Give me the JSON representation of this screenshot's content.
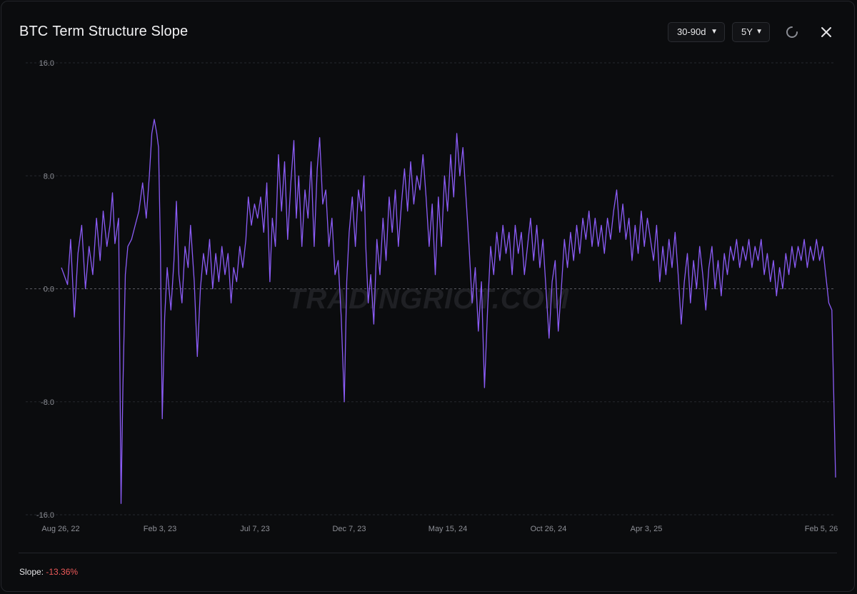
{
  "header": {
    "symbol": "BTC",
    "title": "Term Structure Slope",
    "tenor_select": "30-90d",
    "range_select": "5Y"
  },
  "icons": {
    "refresh": "refresh-icon",
    "close": "close-icon",
    "chevron": "chevron-down-icon"
  },
  "watermark": "TRADINGRIOT.COM",
  "footer": {
    "label": "Slope:",
    "value": "-13.36%"
  },
  "colors": {
    "line": "#8b5cf6",
    "negative": "#ef5a5a",
    "background": "#0b0c0e"
  },
  "chart_data": {
    "type": "line",
    "title": "BTC Term Structure Slope",
    "x_ticks": [
      "Aug 26, 22",
      "Feb 3, 23",
      "Jul 7, 23",
      "Dec 7, 23",
      "May 15, 24",
      "Oct 26, 24",
      "Apr 3, 25",
      "Feb 5, 26"
    ],
    "y_ticks": [
      "16.0",
      "8.0",
      "0.0",
      "-8.0",
      "-16.0"
    ],
    "ylim": [
      -16,
      16
    ],
    "xlim": [
      "2022-08-26",
      "2026-02-05"
    ],
    "grid": "horizontal dashed",
    "zero_line": true,
    "series": [
      {
        "values": [
          [
            "2022-08-26",
            1.5
          ],
          [
            "2022-09-05",
            0.3
          ],
          [
            "2022-09-10",
            3.5
          ],
          [
            "2022-09-16",
            -2.0
          ],
          [
            "2022-09-22",
            2.5
          ],
          [
            "2022-09-28",
            4.5
          ],
          [
            "2022-10-04",
            0.0
          ],
          [
            "2022-10-10",
            3.0
          ],
          [
            "2022-10-16",
            1.0
          ],
          [
            "2022-10-22",
            5.0
          ],
          [
            "2022-10-28",
            2.0
          ],
          [
            "2022-11-02",
            5.5
          ],
          [
            "2022-11-08",
            3.0
          ],
          [
            "2022-11-13",
            4.5
          ],
          [
            "2022-11-17",
            6.8
          ],
          [
            "2022-11-21",
            3.2
          ],
          [
            "2022-11-27",
            5.0
          ],
          [
            "2022-12-01",
            -15.2
          ],
          [
            "2022-12-04",
            -7.0
          ],
          [
            "2022-12-08",
            1.0
          ],
          [
            "2022-12-12",
            3.0
          ],
          [
            "2022-12-18",
            3.5
          ],
          [
            "2022-12-24",
            4.5
          ],
          [
            "2022-12-30",
            5.5
          ],
          [
            "2023-01-05",
            7.5
          ],
          [
            "2023-01-11",
            5.0
          ],
          [
            "2023-01-16",
            8.0
          ],
          [
            "2023-01-20",
            11.0
          ],
          [
            "2023-01-24",
            12.0
          ],
          [
            "2023-01-28",
            11.0
          ],
          [
            "2023-01-31",
            10.0
          ],
          [
            "2023-02-03",
            3.0
          ],
          [
            "2023-02-06",
            -9.2
          ],
          [
            "2023-02-10",
            -2.0
          ],
          [
            "2023-02-14",
            1.5
          ],
          [
            "2023-02-20",
            -1.5
          ],
          [
            "2023-02-25",
            2.0
          ],
          [
            "2023-03-01",
            6.2
          ],
          [
            "2023-03-05",
            1.0
          ],
          [
            "2023-03-10",
            -1.0
          ],
          [
            "2023-03-15",
            3.0
          ],
          [
            "2023-03-20",
            1.5
          ],
          [
            "2023-03-24",
            4.5
          ],
          [
            "2023-03-30",
            0.5
          ],
          [
            "2023-04-04",
            -4.8
          ],
          [
            "2023-04-09",
            0.0
          ],
          [
            "2023-04-14",
            2.5
          ],
          [
            "2023-04-19",
            1.0
          ],
          [
            "2023-04-24",
            3.5
          ],
          [
            "2023-04-29",
            0.0
          ],
          [
            "2023-05-04",
            2.5
          ],
          [
            "2023-05-09",
            0.5
          ],
          [
            "2023-05-14",
            3.0
          ],
          [
            "2023-05-19",
            1.0
          ],
          [
            "2023-05-24",
            2.5
          ],
          [
            "2023-05-29",
            -1.0
          ],
          [
            "2023-06-02",
            1.5
          ],
          [
            "2023-06-07",
            0.5
          ],
          [
            "2023-06-12",
            3.0
          ],
          [
            "2023-06-17",
            1.5
          ],
          [
            "2023-06-22",
            3.5
          ],
          [
            "2023-06-26",
            6.5
          ],
          [
            "2023-07-01",
            4.5
          ],
          [
            "2023-07-06",
            6.0
          ],
          [
            "2023-07-11",
            5.0
          ],
          [
            "2023-07-16",
            6.5
          ],
          [
            "2023-07-21",
            4.0
          ],
          [
            "2023-07-26",
            7.5
          ],
          [
            "2023-07-31",
            0.5
          ],
          [
            "2023-08-04",
            5.0
          ],
          [
            "2023-08-09",
            3.0
          ],
          [
            "2023-08-14",
            9.5
          ],
          [
            "2023-08-19",
            5.5
          ],
          [
            "2023-08-24",
            9.0
          ],
          [
            "2023-08-29",
            3.5
          ],
          [
            "2023-09-03",
            7.5
          ],
          [
            "2023-09-08",
            10.5
          ],
          [
            "2023-09-12",
            5.0
          ],
          [
            "2023-09-16",
            8.0
          ],
          [
            "2023-09-21",
            3.0
          ],
          [
            "2023-09-26",
            7.0
          ],
          [
            "2023-10-01",
            5.0
          ],
          [
            "2023-10-06",
            9.0
          ],
          [
            "2023-10-11",
            3.0
          ],
          [
            "2023-10-16",
            8.5
          ],
          [
            "2023-10-20",
            10.7
          ],
          [
            "2023-10-25",
            6.0
          ],
          [
            "2023-10-30",
            7.0
          ],
          [
            "2023-11-04",
            3.0
          ],
          [
            "2023-11-09",
            5.0
          ],
          [
            "2023-11-14",
            1.0
          ],
          [
            "2023-11-19",
            2.0
          ],
          [
            "2023-11-24",
            -2.0
          ],
          [
            "2023-11-29",
            -8.0
          ],
          [
            "2023-12-03",
            0.5
          ],
          [
            "2023-12-07",
            4.0
          ],
          [
            "2023-12-12",
            6.5
          ],
          [
            "2023-12-17",
            3.0
          ],
          [
            "2023-12-22",
            7.0
          ],
          [
            "2023-12-27",
            5.5
          ],
          [
            "2023-12-31",
            8.0
          ],
          [
            "2024-01-03",
            3.0
          ],
          [
            "2024-01-07",
            -1.0
          ],
          [
            "2024-01-11",
            1.0
          ],
          [
            "2024-01-16",
            -2.5
          ],
          [
            "2024-01-21",
            3.5
          ],
          [
            "2024-01-26",
            1.0
          ],
          [
            "2024-01-31",
            5.0
          ],
          [
            "2024-02-05",
            2.0
          ],
          [
            "2024-02-10",
            6.5
          ],
          [
            "2024-02-15",
            4.0
          ],
          [
            "2024-02-20",
            7.0
          ],
          [
            "2024-02-25",
            3.0
          ],
          [
            "2024-03-01",
            6.0
          ],
          [
            "2024-03-06",
            8.5
          ],
          [
            "2024-03-11",
            5.5
          ],
          [
            "2024-03-16",
            9.0
          ],
          [
            "2024-03-21",
            6.0
          ],
          [
            "2024-03-26",
            8.0
          ],
          [
            "2024-03-31",
            7.0
          ],
          [
            "2024-04-05",
            9.5
          ],
          [
            "2024-04-10",
            6.5
          ],
          [
            "2024-04-15",
            3.0
          ],
          [
            "2024-04-20",
            6.0
          ],
          [
            "2024-04-25",
            1.0
          ],
          [
            "2024-04-30",
            6.5
          ],
          [
            "2024-05-05",
            3.0
          ],
          [
            "2024-05-10",
            8.0
          ],
          [
            "2024-05-15",
            5.5
          ],
          [
            "2024-05-20",
            9.5
          ],
          [
            "2024-05-25",
            6.5
          ],
          [
            "2024-05-30",
            11.0
          ],
          [
            "2024-06-04",
            8.0
          ],
          [
            "2024-06-09",
            10.0
          ],
          [
            "2024-06-14",
            6.5
          ],
          [
            "2024-06-19",
            3.0
          ],
          [
            "2024-06-24",
            -1.0
          ],
          [
            "2024-06-29",
            1.5
          ],
          [
            "2024-07-04",
            -3.0
          ],
          [
            "2024-07-09",
            0.5
          ],
          [
            "2024-07-14",
            -7.0
          ],
          [
            "2024-07-19",
            -1.5
          ],
          [
            "2024-07-24",
            3.0
          ],
          [
            "2024-07-29",
            1.0
          ],
          [
            "2024-08-03",
            4.0
          ],
          [
            "2024-08-08",
            2.0
          ],
          [
            "2024-08-13",
            4.5
          ],
          [
            "2024-08-18",
            2.5
          ],
          [
            "2024-08-23",
            4.0
          ],
          [
            "2024-08-28",
            1.0
          ],
          [
            "2024-09-02",
            4.5
          ],
          [
            "2024-09-07",
            2.5
          ],
          [
            "2024-09-12",
            4.0
          ],
          [
            "2024-09-17",
            1.0
          ],
          [
            "2024-09-22",
            3.0
          ],
          [
            "2024-09-27",
            5.0
          ],
          [
            "2024-10-02",
            2.0
          ],
          [
            "2024-10-07",
            4.5
          ],
          [
            "2024-10-12",
            1.5
          ],
          [
            "2024-10-17",
            3.5
          ],
          [
            "2024-10-22",
            0.0
          ],
          [
            "2024-10-27",
            -3.5
          ],
          [
            "2024-11-01",
            0.5
          ],
          [
            "2024-11-06",
            2.0
          ],
          [
            "2024-11-11",
            -3.0
          ],
          [
            "2024-11-16",
            0.0
          ],
          [
            "2024-11-21",
            3.5
          ],
          [
            "2024-11-26",
            1.5
          ],
          [
            "2024-12-01",
            4.0
          ],
          [
            "2024-12-06",
            2.0
          ],
          [
            "2024-12-11",
            4.5
          ],
          [
            "2024-12-16",
            2.5
          ],
          [
            "2024-12-21",
            5.0
          ],
          [
            "2024-12-26",
            3.5
          ],
          [
            "2024-12-31",
            5.5
          ],
          [
            "2025-01-05",
            3.0
          ],
          [
            "2025-01-10",
            5.0
          ],
          [
            "2025-01-15",
            3.0
          ],
          [
            "2025-01-20",
            4.5
          ],
          [
            "2025-01-25",
            2.5
          ],
          [
            "2025-01-30",
            5.0
          ],
          [
            "2025-02-04",
            3.5
          ],
          [
            "2025-02-09",
            5.5
          ],
          [
            "2025-02-14",
            7.0
          ],
          [
            "2025-02-19",
            4.0
          ],
          [
            "2025-02-24",
            6.0
          ],
          [
            "2025-03-01",
            3.5
          ],
          [
            "2025-03-06",
            5.0
          ],
          [
            "2025-03-11",
            2.0
          ],
          [
            "2025-03-16",
            4.5
          ],
          [
            "2025-03-21",
            2.5
          ],
          [
            "2025-03-26",
            5.5
          ],
          [
            "2025-03-31",
            3.0
          ],
          [
            "2025-04-05",
            5.0
          ],
          [
            "2025-04-10",
            3.5
          ],
          [
            "2025-04-15",
            2.0
          ],
          [
            "2025-04-20",
            4.5
          ],
          [
            "2025-04-25",
            0.5
          ],
          [
            "2025-04-30",
            3.0
          ],
          [
            "2025-05-05",
            1.0
          ],
          [
            "2025-05-10",
            3.5
          ],
          [
            "2025-05-15",
            1.5
          ],
          [
            "2025-05-20",
            4.0
          ],
          [
            "2025-05-25",
            1.0
          ],
          [
            "2025-05-30",
            -2.5
          ],
          [
            "2025-06-04",
            0.5
          ],
          [
            "2025-06-09",
            2.5
          ],
          [
            "2025-06-14",
            -1.0
          ],
          [
            "2025-06-19",
            2.0
          ],
          [
            "2025-06-24",
            0.0
          ],
          [
            "2025-06-29",
            3.0
          ],
          [
            "2025-07-04",
            1.0
          ],
          [
            "2025-07-09",
            -1.5
          ],
          [
            "2025-07-14",
            1.5
          ],
          [
            "2025-07-19",
            3.0
          ],
          [
            "2025-07-24",
            0.0
          ],
          [
            "2025-07-29",
            2.0
          ],
          [
            "2025-08-03",
            -0.5
          ],
          [
            "2025-08-08",
            2.5
          ],
          [
            "2025-08-13",
            1.0
          ],
          [
            "2025-08-18",
            3.0
          ],
          [
            "2025-08-23",
            2.0
          ],
          [
            "2025-08-28",
            3.5
          ],
          [
            "2025-09-02",
            1.5
          ],
          [
            "2025-09-07",
            3.0
          ],
          [
            "2025-09-12",
            2.0
          ],
          [
            "2025-09-17",
            3.5
          ],
          [
            "2025-09-22",
            1.5
          ],
          [
            "2025-09-27",
            3.0
          ],
          [
            "2025-10-02",
            2.0
          ],
          [
            "2025-10-07",
            3.5
          ],
          [
            "2025-10-12",
            1.0
          ],
          [
            "2025-10-17",
            2.5
          ],
          [
            "2025-10-22",
            0.5
          ],
          [
            "2025-10-27",
            2.0
          ],
          [
            "2025-11-01",
            -0.5
          ],
          [
            "2025-11-06",
            1.5
          ],
          [
            "2025-11-11",
            0.0
          ],
          [
            "2025-11-16",
            2.5
          ],
          [
            "2025-11-21",
            1.0
          ],
          [
            "2025-11-26",
            3.0
          ],
          [
            "2025-12-01",
            1.5
          ],
          [
            "2025-12-06",
            3.0
          ],
          [
            "2025-12-11",
            2.0
          ],
          [
            "2025-12-16",
            3.5
          ],
          [
            "2025-12-21",
            1.5
          ],
          [
            "2025-12-26",
            3.0
          ],
          [
            "2025-12-31",
            2.0
          ],
          [
            "2026-01-05",
            3.5
          ],
          [
            "2026-01-10",
            2.0
          ],
          [
            "2026-01-15",
            3.0
          ],
          [
            "2026-01-20",
            1.0
          ],
          [
            "2026-01-25",
            -1.0
          ],
          [
            "2026-01-30",
            -1.5
          ],
          [
            "2026-02-05",
            -13.36
          ]
        ]
      }
    ]
  }
}
